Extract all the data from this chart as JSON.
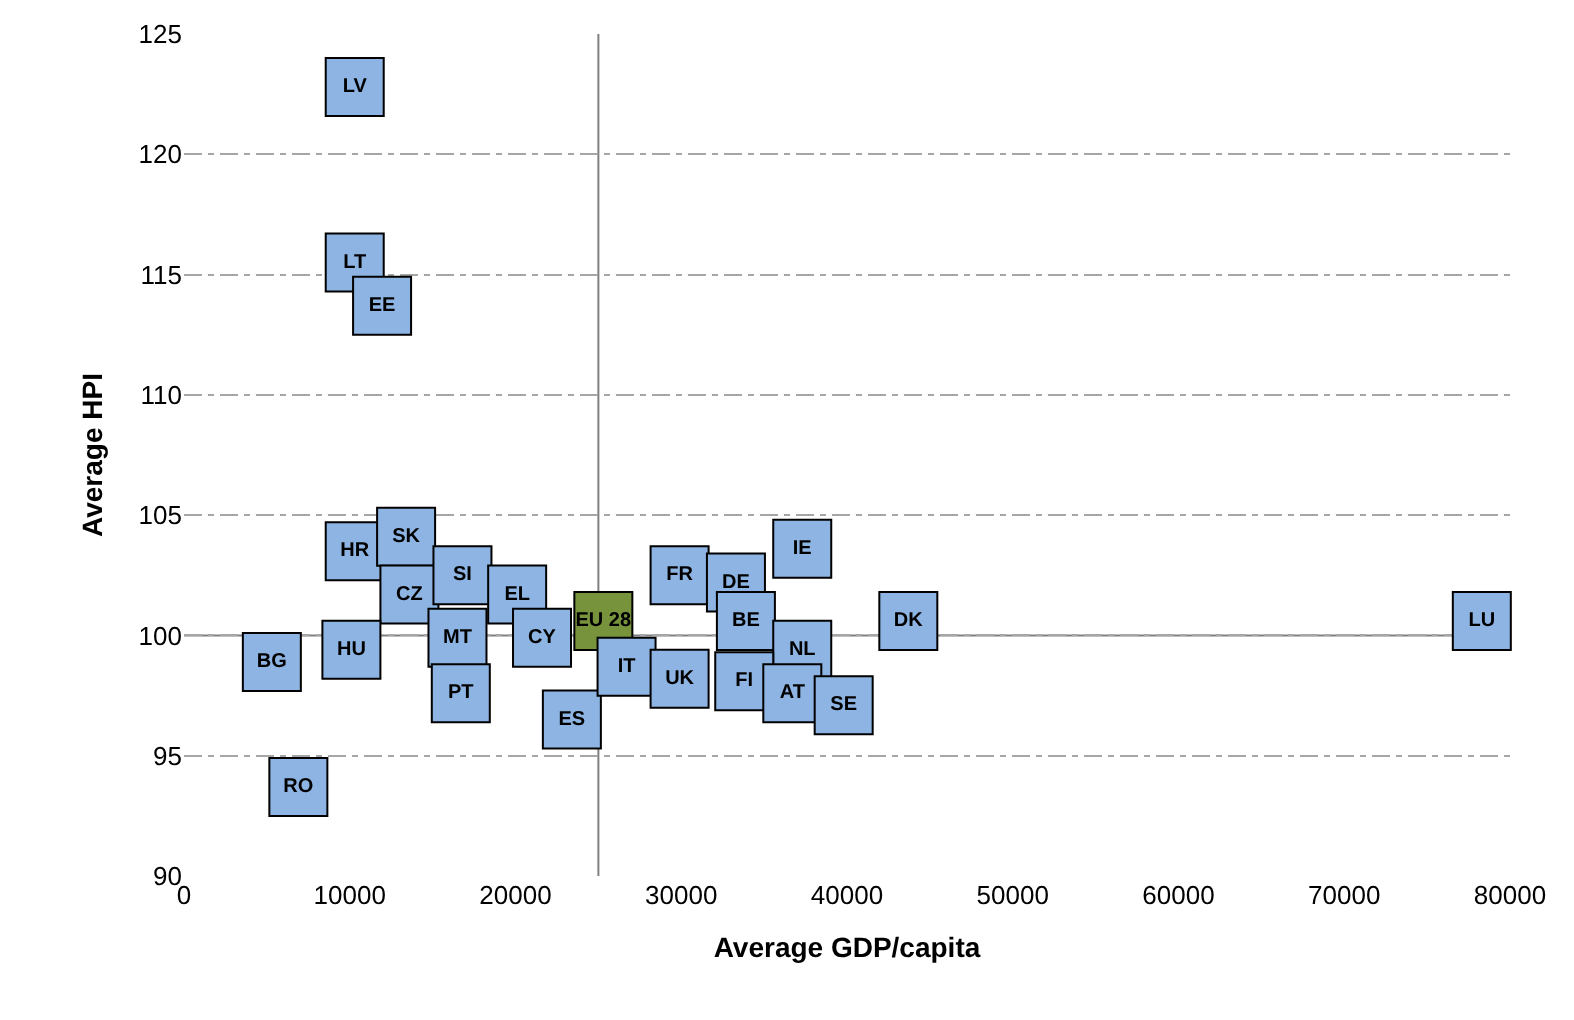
{
  "chart_data": {
    "type": "scatter",
    "xlabel": "Average GDP/capita",
    "ylabel": "Average HPI",
    "x": [
      10300,
      10300,
      11950,
      10300,
      13400,
      13600,
      16800,
      20100,
      16500,
      10100,
      5300,
      16700,
      21600,
      6900,
      23400,
      25300,
      26700,
      29900,
      29900,
      33300,
      33900,
      37300,
      37300,
      33800,
      36700,
      39800,
      43700,
      78300
    ],
    "values": [
      122.8,
      115.5,
      113.7,
      103.5,
      104.1,
      101.7,
      102.5,
      101.7,
      99.9,
      99.4,
      98.9,
      97.6,
      99.9,
      93.7,
      96.5,
      100.6,
      98.7,
      98.2,
      102.5,
      102.2,
      100.6,
      103.6,
      99.4,
      98.1,
      97.6,
      97.1,
      100.6,
      100.6
    ],
    "colors": [
      "#8db4e2",
      "#8db4e2",
      "#8db4e2",
      "#8db4e2",
      "#8db4e2",
      "#8db4e2",
      "#8db4e2",
      "#8db4e2",
      "#8db4e2",
      "#8db4e2",
      "#8db4e2",
      "#8db4e2",
      "#8db4e2",
      "#8db4e2",
      "#8db4e2",
      "#77933c",
      "#8db4e2",
      "#8db4e2",
      "#8db4e2",
      "#8db4e2",
      "#8db4e2",
      "#8db4e2",
      "#8db4e2",
      "#8db4e2",
      "#8db4e2",
      "#8db4e2",
      "#8db4e2",
      "#8db4e2"
    ],
    "annotations": [
      {
        "text": "LV",
        "x": 10300,
        "y": 122.8
      },
      {
        "text": "LT",
        "x": 10300,
        "y": 115.5
      },
      {
        "text": "EE",
        "x": 11950,
        "y": 113.7
      },
      {
        "text": "HR",
        "x": 10300,
        "y": 103.5
      },
      {
        "text": "SK",
        "x": 13400,
        "y": 104.1
      },
      {
        "text": "CZ",
        "x": 13600,
        "y": 101.7
      },
      {
        "text": "SI",
        "x": 16800,
        "y": 102.5
      },
      {
        "text": "EL",
        "x": 20100,
        "y": 101.7
      },
      {
        "text": "MT",
        "x": 16500,
        "y": 99.9
      },
      {
        "text": "HU",
        "x": 10100,
        "y": 99.4
      },
      {
        "text": "BG",
        "x": 5300,
        "y": 98.9
      },
      {
        "text": "PT",
        "x": 16700,
        "y": 97.6
      },
      {
        "text": "CY",
        "x": 21600,
        "y": 99.9
      },
      {
        "text": "RO",
        "x": 6900,
        "y": 93.7
      },
      {
        "text": "ES",
        "x": 23400,
        "y": 96.5
      },
      {
        "text": "EU 28",
        "x": 25300,
        "y": 100.6
      },
      {
        "text": "IT",
        "x": 26700,
        "y": 98.7
      },
      {
        "text": "UK",
        "x": 29900,
        "y": 98.2
      },
      {
        "text": "FR",
        "x": 29900,
        "y": 102.5
      },
      {
        "text": "DE",
        "x": 33300,
        "y": 102.2
      },
      {
        "text": "BE",
        "x": 33900,
        "y": 100.6
      },
      {
        "text": "IE",
        "x": 37300,
        "y": 103.6
      },
      {
        "text": "NL",
        "x": 37300,
        "y": 99.4
      },
      {
        "text": "FI",
        "x": 33800,
        "y": 98.1
      },
      {
        "text": "AT",
        "x": 36700,
        "y": 97.6
      },
      {
        "text": "SE",
        "x": 39800,
        "y": 97.1
      },
      {
        "text": "DK",
        "x": 43700,
        "y": 100.6
      },
      {
        "text": "LU",
        "x": 78300,
        "y": 100.6
      }
    ],
    "xlim": [
      0,
      80000
    ],
    "xticks": [
      0,
      10000,
      20000,
      30000,
      40000,
      50000,
      60000,
      70000,
      80000
    ],
    "ylim": [
      90,
      125
    ],
    "yticks": [
      90,
      95,
      100,
      105,
      110,
      115,
      120,
      125
    ],
    "ref_lines": [
      {
        "axis": "x",
        "value": 25000,
        "color": "#808080"
      },
      {
        "axis": "y",
        "value": 100,
        "color": "#808080"
      }
    ],
    "grid": "y",
    "marker": "square"
  }
}
